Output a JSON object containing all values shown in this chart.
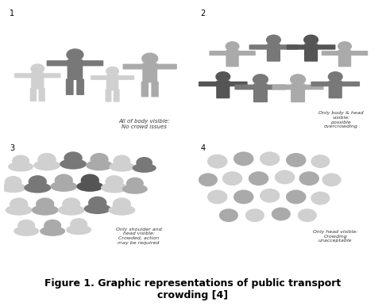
{
  "title": "Figure 1. Graphic representations of public transport\ncrowding [4]",
  "title_fontsize": 9,
  "bg_color": "#ffffff",
  "border_color": "#888888",
  "panel_labels": [
    "1",
    "2",
    "3",
    "4"
  ],
  "panel1_text": "All of body visible:\nNo crowd issues",
  "panel2_text": "Only body & head\nvisible:\npossible\novercrowding",
  "panel3_text": "Only shoulder and\nhead visible:\nCrowded, action\nmay be required",
  "panel4_text": "Only head visible:\nCrowding\nunacceptable",
  "colors": {
    "light": "#d0d0d0",
    "medium": "#aaaaaa",
    "dark": "#787878",
    "darker": "#555555"
  }
}
